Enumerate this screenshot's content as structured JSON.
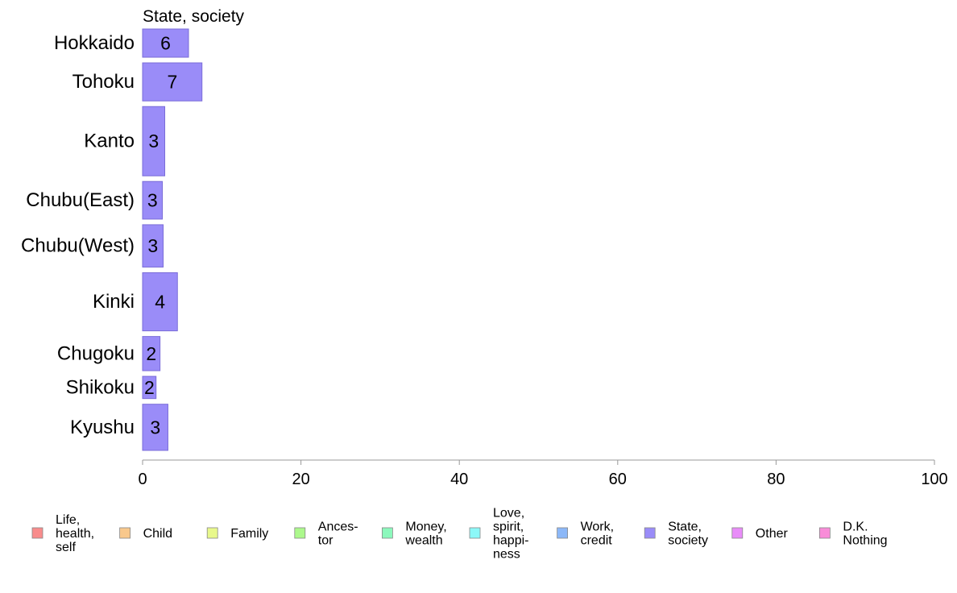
{
  "chart_data": {
    "type": "bar",
    "orientation": "horizontal",
    "series_label": "State, society",
    "categories": [
      "Hokkaido",
      "Tohoku",
      "Kanto",
      "Chubu(East)",
      "Chubu(West)",
      "Kinki",
      "Chugoku",
      "Shikoku",
      "Kyushu"
    ],
    "values": [
      5.8,
      7.5,
      2.8,
      2.5,
      2.6,
      4.4,
      2.2,
      1.7,
      3.2
    ],
    "value_labels": [
      "6",
      "7",
      "3",
      "3",
      "3",
      "4",
      "2",
      "2",
      "3"
    ],
    "bar_weights": [
      0.66,
      0.89,
      1.62,
      0.88,
      0.99,
      1.36,
      0.8,
      0.52,
      1.08
    ],
    "xlim": [
      0,
      100
    ],
    "xticks": [
      "0",
      "20",
      "40",
      "60",
      "80",
      "100"
    ],
    "bar_color": "#9a8cf8",
    "bar_border": "#7a6cd8",
    "legend_position": "bottom",
    "legend": [
      {
        "label": [
          "Life,",
          "health,",
          "self"
        ],
        "color": "#f88c8c"
      },
      {
        "label": [
          "Child"
        ],
        "color": "#f8c88c"
      },
      {
        "label": [
          "Family"
        ],
        "color": "#e8f88c"
      },
      {
        "label": [
          "Ances-",
          "tor"
        ],
        "color": "#acf88c"
      },
      {
        "label": [
          "Money,",
          "wealth"
        ],
        "color": "#8cf8bc"
      },
      {
        "label": [
          "Love,",
          "spirit,",
          "happi-",
          "ness"
        ],
        "color": "#8cf8f8"
      },
      {
        "label": [
          "Work,",
          "credit"
        ],
        "color": "#8cb8f8"
      },
      {
        "label": [
          "State,",
          "society"
        ],
        "color": "#9a8cf8"
      },
      {
        "label": [
          "Other"
        ],
        "color": "#e88cf8"
      },
      {
        "label": [
          "D.K.",
          "Nothing"
        ],
        "color": "#f88cd8"
      }
    ]
  }
}
